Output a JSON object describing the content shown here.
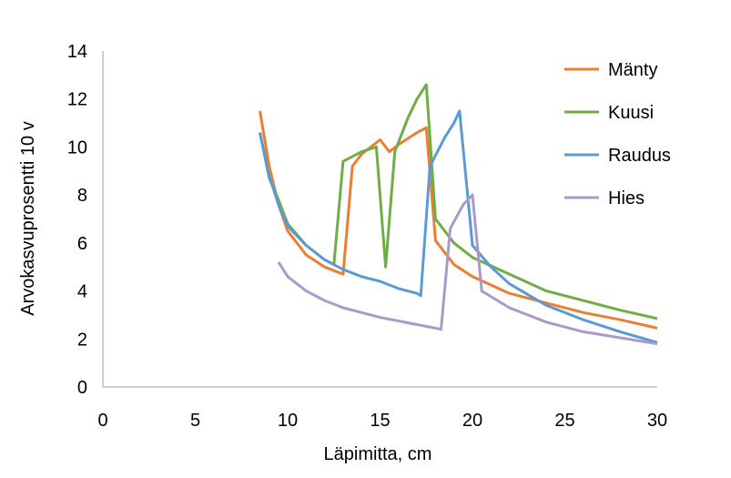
{
  "chart_data": {
    "type": "line",
    "xlabel": "Läpimitta, cm",
    "ylabel": "Arvokasvuprosentti 10 v",
    "xlim": [
      0,
      30
    ],
    "ylim": [
      0,
      14
    ],
    "x_ticks": [
      "0",
      "5",
      "10",
      "15",
      "20",
      "25",
      "30"
    ],
    "y_ticks": [
      "0",
      "2",
      "4",
      "6",
      "8",
      "10",
      "12",
      "14"
    ],
    "grid": false,
    "legend_position": "right",
    "series": [
      {
        "name": "Mänty",
        "color": "#ED7D31",
        "points": [
          [
            8.5,
            11.5
          ],
          [
            9.0,
            9.2
          ],
          [
            9.5,
            7.6
          ],
          [
            10.0,
            6.5
          ],
          [
            11.0,
            5.5
          ],
          [
            12.0,
            5.0
          ],
          [
            13.0,
            4.7
          ],
          [
            13.5,
            9.2
          ],
          [
            14.0,
            9.7
          ],
          [
            15.0,
            10.3
          ],
          [
            15.5,
            9.8
          ],
          [
            16.0,
            10.1
          ],
          [
            17.0,
            10.6
          ],
          [
            17.5,
            10.8
          ],
          [
            18.0,
            6.1
          ],
          [
            19.0,
            5.1
          ],
          [
            20.0,
            4.6
          ],
          [
            22.0,
            3.9
          ],
          [
            24.0,
            3.5
          ],
          [
            26.0,
            3.1
          ],
          [
            28.0,
            2.8
          ],
          [
            30.0,
            2.45
          ]
        ]
      },
      {
        "name": "Kuusi",
        "color": "#70AD47",
        "points": [
          [
            8.5,
            10.6
          ],
          [
            9.0,
            8.7
          ],
          [
            9.5,
            7.8
          ],
          [
            10.0,
            6.8
          ],
          [
            11.0,
            5.9
          ],
          [
            12.0,
            5.3
          ],
          [
            12.5,
            5.1
          ],
          [
            13.0,
            9.4
          ],
          [
            14.0,
            9.8
          ],
          [
            14.8,
            10.0
          ],
          [
            15.3,
            5.0
          ],
          [
            15.8,
            9.8
          ],
          [
            16.5,
            11.2
          ],
          [
            17.0,
            12.0
          ],
          [
            17.5,
            12.6
          ],
          [
            18.0,
            7.0
          ],
          [
            19.0,
            6.0
          ],
          [
            20.0,
            5.4
          ],
          [
            22.0,
            4.7
          ],
          [
            24.0,
            4.0
          ],
          [
            26.0,
            3.6
          ],
          [
            28.0,
            3.2
          ],
          [
            30.0,
            2.85
          ]
        ]
      },
      {
        "name": "Raudus",
        "color": "#5B9BD5",
        "points": [
          [
            8.5,
            10.6
          ],
          [
            9.0,
            8.8
          ],
          [
            9.5,
            7.6
          ],
          [
            10.0,
            6.7
          ],
          [
            11.0,
            5.9
          ],
          [
            12.0,
            5.3
          ],
          [
            13.0,
            4.9
          ],
          [
            14.0,
            4.6
          ],
          [
            15.0,
            4.4
          ],
          [
            16.0,
            4.1
          ],
          [
            17.0,
            3.9
          ],
          [
            17.2,
            3.8
          ],
          [
            17.7,
            9.2
          ],
          [
            18.5,
            10.4
          ],
          [
            19.0,
            11.0
          ],
          [
            19.3,
            11.5
          ],
          [
            20.0,
            5.9
          ],
          [
            21.0,
            5.0
          ],
          [
            22.0,
            4.3
          ],
          [
            24.0,
            3.4
          ],
          [
            26.0,
            2.8
          ],
          [
            28.0,
            2.3
          ],
          [
            30.0,
            1.85
          ]
        ]
      },
      {
        "name": "Hies",
        "color": "#A99BC9",
        "points": [
          [
            9.5,
            5.2
          ],
          [
            10.0,
            4.6
          ],
          [
            11.0,
            4.0
          ],
          [
            12.0,
            3.6
          ],
          [
            13.0,
            3.3
          ],
          [
            14.0,
            3.1
          ],
          [
            15.0,
            2.9
          ],
          [
            16.0,
            2.75
          ],
          [
            17.0,
            2.6
          ],
          [
            18.0,
            2.45
          ],
          [
            18.3,
            2.4
          ],
          [
            18.8,
            6.6
          ],
          [
            19.5,
            7.6
          ],
          [
            20.0,
            8.0
          ],
          [
            20.5,
            4.0
          ],
          [
            22.0,
            3.3
          ],
          [
            24.0,
            2.7
          ],
          [
            26.0,
            2.3
          ],
          [
            28.0,
            2.05
          ],
          [
            30.0,
            1.8
          ]
        ]
      }
    ]
  }
}
